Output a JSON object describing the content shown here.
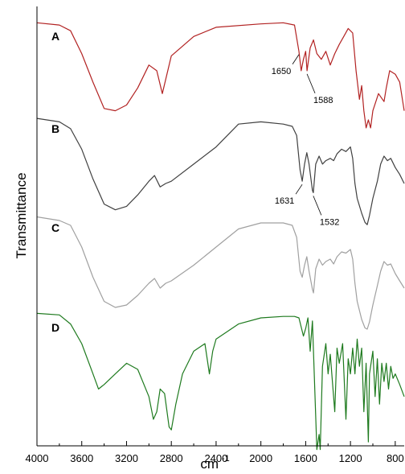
{
  "chart_data": {
    "type": "line",
    "title": "",
    "xlabel": "cm",
    "xlabel_superscript": "-1",
    "ylabel": "Transmittance",
    "xlim": [
      4000,
      720
    ],
    "x_reversed": true,
    "y_ticks_shown": false,
    "grid": false,
    "xticks": [
      4000,
      3600,
      3200,
      2800,
      2400,
      2000,
      1600,
      1200,
      800
    ],
    "xtick_labels": [
      "4000",
      "3600",
      "3200",
      "2800",
      "2400",
      "2000",
      "1600",
      "1200",
      "800"
    ],
    "series": [
      {
        "name": "A",
        "color": "#b22222",
        "points": [
          [
            4000,
            0.97
          ],
          [
            3800,
            0.95
          ],
          [
            3700,
            0.9
          ],
          [
            3600,
            0.7
          ],
          [
            3500,
            0.45
          ],
          [
            3400,
            0.22
          ],
          [
            3300,
            0.2
          ],
          [
            3200,
            0.25
          ],
          [
            3100,
            0.4
          ],
          [
            3000,
            0.6
          ],
          [
            2930,
            0.55
          ],
          [
            2880,
            0.35
          ],
          [
            2800,
            0.68
          ],
          [
            2600,
            0.85
          ],
          [
            2400,
            0.93
          ],
          [
            2000,
            0.96
          ],
          [
            1800,
            0.97
          ],
          [
            1700,
            0.95
          ],
          [
            1660,
            0.72
          ],
          [
            1640,
            0.55
          ],
          [
            1620,
            0.65
          ],
          [
            1600,
            0.72
          ],
          [
            1588,
            0.55
          ],
          [
            1560,
            0.75
          ],
          [
            1530,
            0.82
          ],
          [
            1500,
            0.7
          ],
          [
            1460,
            0.65
          ],
          [
            1420,
            0.72
          ],
          [
            1380,
            0.6
          ],
          [
            1340,
            0.7
          ],
          [
            1300,
            0.78
          ],
          [
            1260,
            0.85
          ],
          [
            1220,
            0.92
          ],
          [
            1180,
            0.88
          ],
          [
            1150,
            0.55
          ],
          [
            1120,
            0.3
          ],
          [
            1100,
            0.42
          ],
          [
            1080,
            0.2
          ],
          [
            1060,
            0.05
          ],
          [
            1040,
            0.12
          ],
          [
            1020,
            0.05
          ],
          [
            1000,
            0.2
          ],
          [
            950,
            0.35
          ],
          [
            900,
            0.28
          ],
          [
            880,
            0.4
          ],
          [
            850,
            0.55
          ],
          [
            800,
            0.52
          ],
          [
            760,
            0.45
          ],
          [
            720,
            0.2
          ]
        ],
        "annotations": [
          {
            "x": 1650,
            "text": "1650"
          },
          {
            "x": 1588,
            "text": "1588"
          }
        ]
      },
      {
        "name": "B",
        "color": "#404040",
        "points": [
          [
            4000,
            0.95
          ],
          [
            3800,
            0.92
          ],
          [
            3700,
            0.86
          ],
          [
            3600,
            0.68
          ],
          [
            3500,
            0.42
          ],
          [
            3400,
            0.2
          ],
          [
            3300,
            0.15
          ],
          [
            3200,
            0.18
          ],
          [
            3100,
            0.28
          ],
          [
            3000,
            0.4
          ],
          [
            2950,
            0.45
          ],
          [
            2900,
            0.35
          ],
          [
            2850,
            0.38
          ],
          [
            2800,
            0.4
          ],
          [
            2600,
            0.55
          ],
          [
            2400,
            0.7
          ],
          [
            2200,
            0.9
          ],
          [
            2000,
            0.92
          ],
          [
            1800,
            0.9
          ],
          [
            1720,
            0.88
          ],
          [
            1680,
            0.8
          ],
          [
            1650,
            0.5
          ],
          [
            1631,
            0.4
          ],
          [
            1610,
            0.55
          ],
          [
            1590,
            0.65
          ],
          [
            1570,
            0.55
          ],
          [
            1540,
            0.32
          ],
          [
            1532,
            0.3
          ],
          [
            1510,
            0.55
          ],
          [
            1480,
            0.62
          ],
          [
            1450,
            0.55
          ],
          [
            1420,
            0.58
          ],
          [
            1380,
            0.6
          ],
          [
            1350,
            0.58
          ],
          [
            1320,
            0.64
          ],
          [
            1280,
            0.68
          ],
          [
            1240,
            0.66
          ],
          [
            1200,
            0.7
          ],
          [
            1180,
            0.6
          ],
          [
            1160,
            0.38
          ],
          [
            1140,
            0.25
          ],
          [
            1100,
            0.12
          ],
          [
            1070,
            0.04
          ],
          [
            1050,
            0.02
          ],
          [
            1030,
            0.1
          ],
          [
            1000,
            0.25
          ],
          [
            960,
            0.4
          ],
          [
            930,
            0.55
          ],
          [
            900,
            0.62
          ],
          [
            870,
            0.58
          ],
          [
            840,
            0.6
          ],
          [
            800,
            0.52
          ],
          [
            760,
            0.46
          ],
          [
            720,
            0.38
          ]
        ],
        "annotations": [
          {
            "x": 1631,
            "text": "1631"
          },
          {
            "x": 1532,
            "text": "1532"
          }
        ]
      },
      {
        "name": "C",
        "color": "#a0a0a0",
        "points": [
          [
            4000,
            0.95
          ],
          [
            3800,
            0.92
          ],
          [
            3700,
            0.88
          ],
          [
            3600,
            0.7
          ],
          [
            3500,
            0.45
          ],
          [
            3400,
            0.25
          ],
          [
            3300,
            0.2
          ],
          [
            3200,
            0.22
          ],
          [
            3100,
            0.3
          ],
          [
            3000,
            0.4
          ],
          [
            2950,
            0.44
          ],
          [
            2900,
            0.36
          ],
          [
            2850,
            0.4
          ],
          [
            2800,
            0.42
          ],
          [
            2600,
            0.55
          ],
          [
            2400,
            0.7
          ],
          [
            2200,
            0.85
          ],
          [
            2000,
            0.9
          ],
          [
            1800,
            0.9
          ],
          [
            1720,
            0.88
          ],
          [
            1680,
            0.78
          ],
          [
            1650,
            0.5
          ],
          [
            1631,
            0.45
          ],
          [
            1610,
            0.55
          ],
          [
            1590,
            0.62
          ],
          [
            1570,
            0.5
          ],
          [
            1540,
            0.35
          ],
          [
            1530,
            0.32
          ],
          [
            1510,
            0.52
          ],
          [
            1480,
            0.6
          ],
          [
            1450,
            0.55
          ],
          [
            1420,
            0.58
          ],
          [
            1380,
            0.6
          ],
          [
            1350,
            0.56
          ],
          [
            1320,
            0.62
          ],
          [
            1280,
            0.66
          ],
          [
            1240,
            0.65
          ],
          [
            1200,
            0.68
          ],
          [
            1180,
            0.6
          ],
          [
            1160,
            0.4
          ],
          [
            1140,
            0.25
          ],
          [
            1100,
            0.1
          ],
          [
            1070,
            0.03
          ],
          [
            1050,
            0.02
          ],
          [
            1030,
            0.08
          ],
          [
            1000,
            0.22
          ],
          [
            960,
            0.38
          ],
          [
            930,
            0.5
          ],
          [
            900,
            0.58
          ],
          [
            870,
            0.55
          ],
          [
            840,
            0.56
          ],
          [
            800,
            0.48
          ],
          [
            760,
            0.42
          ],
          [
            720,
            0.36
          ]
        ],
        "annotations": []
      },
      {
        "name": "D",
        "color": "#1e7a1e",
        "points": [
          [
            4000,
            0.95
          ],
          [
            3800,
            0.94
          ],
          [
            3700,
            0.88
          ],
          [
            3600,
            0.75
          ],
          [
            3500,
            0.55
          ],
          [
            3450,
            0.45
          ],
          [
            3400,
            0.48
          ],
          [
            3300,
            0.55
          ],
          [
            3200,
            0.62
          ],
          [
            3100,
            0.58
          ],
          [
            3000,
            0.4
          ],
          [
            2960,
            0.25
          ],
          [
            2930,
            0.3
          ],
          [
            2900,
            0.45
          ],
          [
            2860,
            0.42
          ],
          [
            2820,
            0.2
          ],
          [
            2800,
            0.18
          ],
          [
            2760,
            0.35
          ],
          [
            2700,
            0.55
          ],
          [
            2600,
            0.7
          ],
          [
            2500,
            0.75
          ],
          [
            2460,
            0.55
          ],
          [
            2430,
            0.7
          ],
          [
            2400,
            0.78
          ],
          [
            2200,
            0.88
          ],
          [
            2000,
            0.92
          ],
          [
            1800,
            0.93
          ],
          [
            1700,
            0.93
          ],
          [
            1660,
            0.92
          ],
          [
            1620,
            0.8
          ],
          [
            1600,
            0.85
          ],
          [
            1580,
            0.92
          ],
          [
            1560,
            0.7
          ],
          [
            1540,
            0.9
          ],
          [
            1500,
            0.05
          ],
          [
            1480,
            0.15
          ],
          [
            1470,
            0.05
          ],
          [
            1450,
            0.6
          ],
          [
            1420,
            0.75
          ],
          [
            1400,
            0.55
          ],
          [
            1380,
            0.68
          ],
          [
            1340,
            0.3
          ],
          [
            1320,
            0.72
          ],
          [
            1300,
            0.62
          ],
          [
            1270,
            0.75
          ],
          [
            1240,
            0.25
          ],
          [
            1220,
            0.65
          ],
          [
            1200,
            0.55
          ],
          [
            1180,
            0.72
          ],
          [
            1160,
            0.55
          ],
          [
            1140,
            0.78
          ],
          [
            1120,
            0.6
          ],
          [
            1100,
            0.72
          ],
          [
            1080,
            0.3
          ],
          [
            1060,
            0.62
          ],
          [
            1040,
            0.1
          ],
          [
            1030,
            0.55
          ],
          [
            1000,
            0.7
          ],
          [
            980,
            0.4
          ],
          [
            960,
            0.65
          ],
          [
            940,
            0.35
          ],
          [
            920,
            0.62
          ],
          [
            900,
            0.5
          ],
          [
            880,
            0.62
          ],
          [
            860,
            0.45
          ],
          [
            840,
            0.6
          ],
          [
            820,
            0.52
          ],
          [
            800,
            0.55
          ],
          [
            760,
            0.48
          ],
          [
            720,
            0.4
          ]
        ],
        "annotations": []
      }
    ]
  }
}
